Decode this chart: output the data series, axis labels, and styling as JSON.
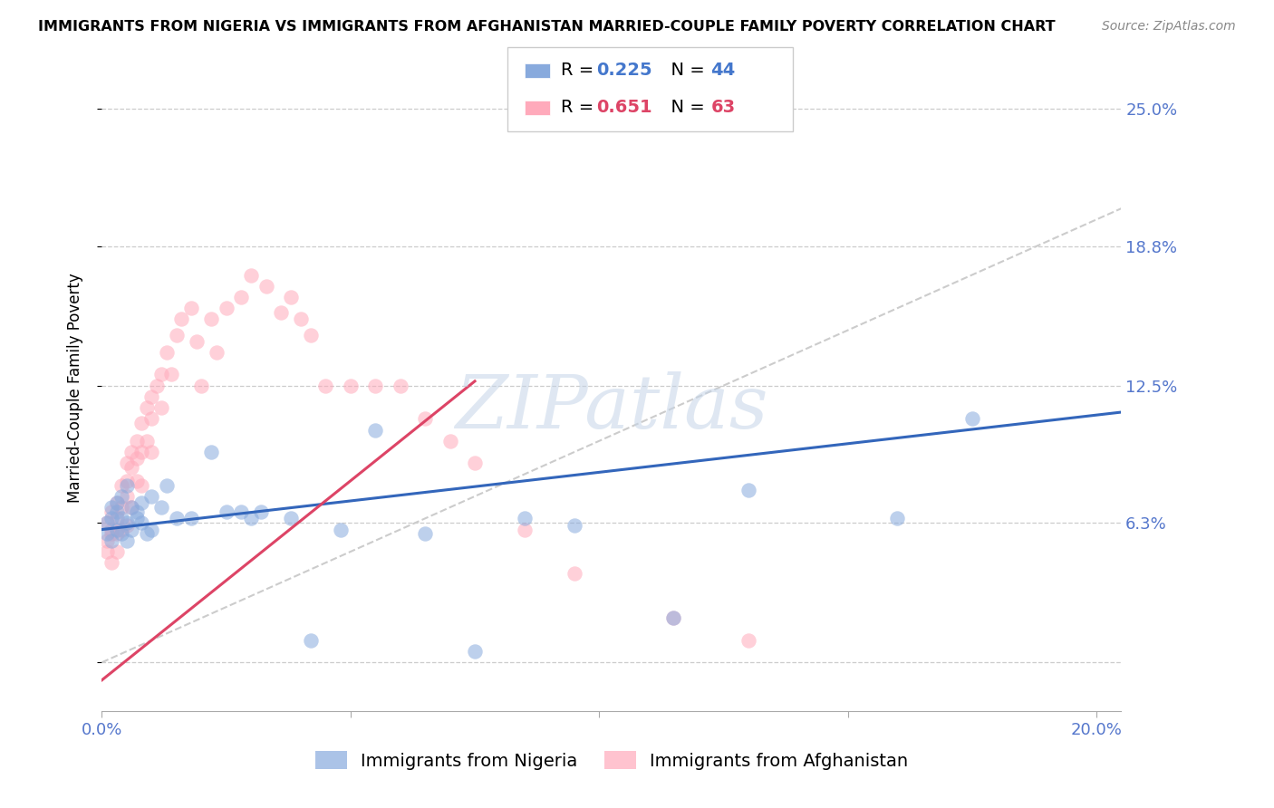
{
  "title": "IMMIGRANTS FROM NIGERIA VS IMMIGRANTS FROM AFGHANISTAN MARRIED-COUPLE FAMILY POVERTY CORRELATION CHART",
  "source": "Source: ZipAtlas.com",
  "ylabel": "Married-Couple Family Poverty",
  "xlim": [
    0.0,
    0.205
  ],
  "ylim": [
    -0.022,
    0.27
  ],
  "ytick_vals": [
    0.0,
    0.063,
    0.125,
    0.188,
    0.25
  ],
  "ytick_labels_right": [
    "",
    "6.3%",
    "12.5%",
    "18.8%",
    "25.0%"
  ],
  "xtick_vals": [
    0.0,
    0.05,
    0.1,
    0.15,
    0.2
  ],
  "xtick_labels": [
    "0.0%",
    "",
    "",
    "",
    "20.0%"
  ],
  "nigeria_R": 0.225,
  "nigeria_N": 44,
  "afghanistan_R": 0.651,
  "afghanistan_N": 63,
  "nigeria_scatter_color": "#88aadd",
  "afghanistan_scatter_color": "#ffaabb",
  "nigeria_line_color": "#3366bb",
  "afghanistan_line_color": "#dd4466",
  "diagonal_color": "#cccccc",
  "watermark_color": "#c5d5e8",
  "title_fontsize": 11.5,
  "axis_label_fontsize": 12,
  "tick_label_fontsize": 13,
  "legend_fontsize": 14,
  "nigeria_x": [
    0.001,
    0.001,
    0.002,
    0.002,
    0.002,
    0.003,
    0.003,
    0.003,
    0.004,
    0.004,
    0.004,
    0.005,
    0.005,
    0.005,
    0.006,
    0.006,
    0.007,
    0.007,
    0.008,
    0.008,
    0.009,
    0.01,
    0.01,
    0.012,
    0.013,
    0.015,
    0.018,
    0.022,
    0.025,
    0.028,
    0.03,
    0.032,
    0.038,
    0.042,
    0.048,
    0.055,
    0.065,
    0.075,
    0.085,
    0.095,
    0.115,
    0.13,
    0.16,
    0.175
  ],
  "nigeria_y": [
    0.063,
    0.058,
    0.07,
    0.065,
    0.055,
    0.068,
    0.072,
    0.06,
    0.065,
    0.075,
    0.058,
    0.08,
    0.063,
    0.055,
    0.07,
    0.06,
    0.065,
    0.068,
    0.063,
    0.072,
    0.058,
    0.075,
    0.06,
    0.07,
    0.08,
    0.065,
    0.065,
    0.095,
    0.068,
    0.068,
    0.065,
    0.068,
    0.065,
    0.01,
    0.06,
    0.105,
    0.058,
    0.005,
    0.065,
    0.062,
    0.02,
    0.078,
    0.065,
    0.11
  ],
  "afghanistan_x": [
    0.001,
    0.001,
    0.001,
    0.002,
    0.002,
    0.002,
    0.002,
    0.003,
    0.003,
    0.003,
    0.003,
    0.004,
    0.004,
    0.004,
    0.005,
    0.005,
    0.005,
    0.005,
    0.006,
    0.006,
    0.006,
    0.007,
    0.007,
    0.007,
    0.008,
    0.008,
    0.008,
    0.009,
    0.009,
    0.01,
    0.01,
    0.01,
    0.011,
    0.012,
    0.012,
    0.013,
    0.014,
    0.015,
    0.016,
    0.018,
    0.019,
    0.02,
    0.022,
    0.023,
    0.025,
    0.028,
    0.03,
    0.033,
    0.036,
    0.038,
    0.04,
    0.042,
    0.045,
    0.05,
    0.055,
    0.06,
    0.065,
    0.07,
    0.075,
    0.085,
    0.095,
    0.115,
    0.13
  ],
  "afghanistan_y": [
    0.063,
    0.055,
    0.05,
    0.068,
    0.06,
    0.058,
    0.045,
    0.072,
    0.065,
    0.058,
    0.05,
    0.08,
    0.07,
    0.06,
    0.09,
    0.082,
    0.075,
    0.062,
    0.095,
    0.088,
    0.07,
    0.1,
    0.092,
    0.082,
    0.108,
    0.095,
    0.08,
    0.115,
    0.1,
    0.12,
    0.11,
    0.095,
    0.125,
    0.13,
    0.115,
    0.14,
    0.13,
    0.148,
    0.155,
    0.16,
    0.145,
    0.125,
    0.155,
    0.14,
    0.16,
    0.165,
    0.175,
    0.17,
    0.158,
    0.165,
    0.155,
    0.148,
    0.125,
    0.125,
    0.125,
    0.125,
    0.11,
    0.1,
    0.09,
    0.06,
    0.04,
    0.02,
    0.01
  ],
  "ng_line_x0": 0.0,
  "ng_line_y0": 0.06,
  "ng_line_x1": 0.205,
  "ng_line_y1": 0.113,
  "af_line_x0": 0.0,
  "af_line_y0": -0.008,
  "af_line_x1": 0.075,
  "af_line_y1": 0.127
}
